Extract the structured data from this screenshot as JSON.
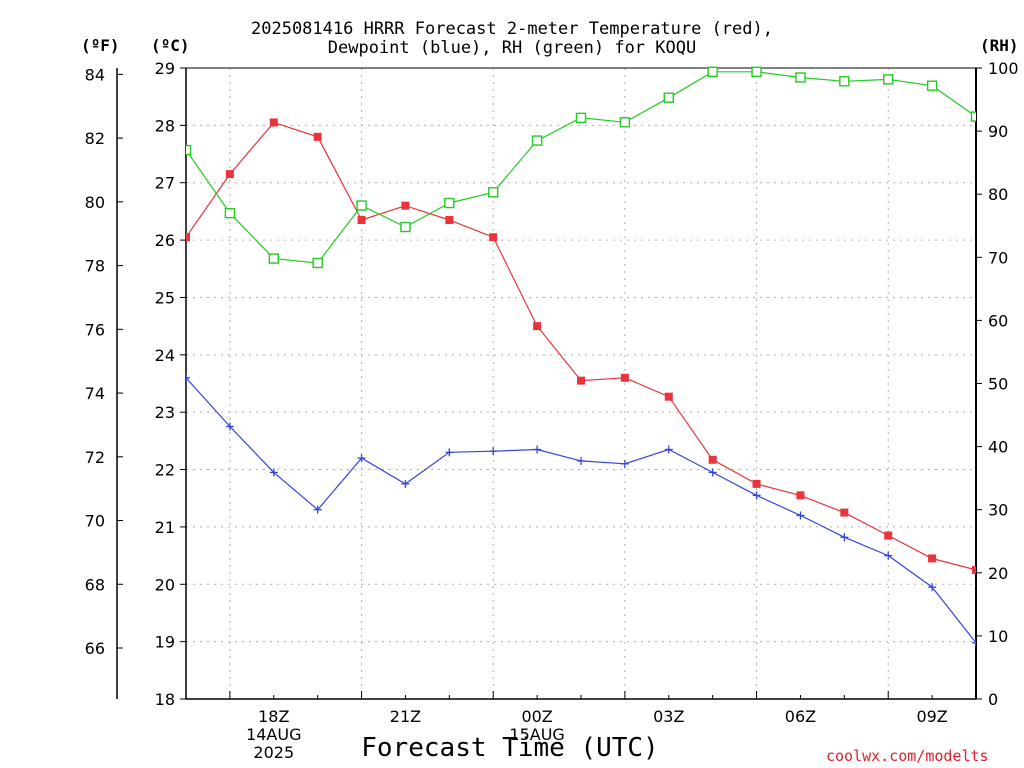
{
  "chart_data": {
    "type": "line",
    "title_lines": [
      "2025081416 HRRR Forecast 2-meter Temperature (red),",
      "Dewpoint (blue), RH (green) for KOQU"
    ],
    "units": {
      "fahrenheit": "(ºF)",
      "celsius": "(ºC)",
      "rh": "(RH)"
    },
    "xlabel": "Forecast Time (UTC)",
    "x_start": "2025-08-14 16Z",
    "x_step_hours": 1,
    "x_ticks": [
      {
        "label": "18Z",
        "sub": [
          "14AUG",
          "2025"
        ]
      },
      {
        "label": "21Z",
        "sub": []
      },
      {
        "label": "00Z",
        "sub": [
          "15AUG"
        ]
      },
      {
        "label": "03Z",
        "sub": []
      },
      {
        "label": "06Z",
        "sub": []
      },
      {
        "label": "09Z",
        "sub": []
      }
    ],
    "celsius_axis": {
      "range": [
        18,
        29
      ],
      "ticks": [
        "18",
        "19",
        "20",
        "21",
        "22",
        "23",
        "24",
        "25",
        "26",
        "27",
        "28",
        "29"
      ]
    },
    "fahrenheit_axis": {
      "range": [
        64.4,
        84.2
      ],
      "ticks": [
        "66",
        "68",
        "70",
        "72",
        "74",
        "76",
        "78",
        "80",
        "82",
        "84"
      ]
    },
    "rh_axis": {
      "range": [
        0,
        100
      ],
      "ticks": [
        "0",
        "10",
        "20",
        "30",
        "40",
        "50",
        "60",
        "70",
        "80",
        "90",
        "100"
      ]
    },
    "grid": true,
    "series": [
      {
        "name": "2-meter Temperature (red)",
        "axis": "celsius",
        "color": "#e8343a",
        "marker": "filled-square",
        "values": [
          26.05,
          27.15,
          28.05,
          27.8,
          26.35,
          26.6,
          26.35,
          26.05,
          24.5,
          23.55,
          23.6,
          23.27,
          22.17,
          21.75,
          21.55,
          21.25,
          20.85,
          20.45,
          20.25
        ]
      },
      {
        "name": "Dewpoint (blue)",
        "axis": "celsius",
        "color": "#3344dd",
        "marker": "plus",
        "values": [
          23.6,
          22.75,
          21.95,
          21.3,
          22.2,
          21.75,
          22.3,
          22.32,
          22.35,
          22.15,
          22.1,
          22.35,
          21.95,
          21.55,
          21.2,
          20.82,
          20.5,
          19.95,
          18.98
        ]
      },
      {
        "name": "RH (green)",
        "axis": "rh",
        "color": "#22cc22",
        "marker": "open-square",
        "values": [
          87,
          77,
          69.8,
          69.1,
          78.2,
          74.8,
          78.6,
          80.3,
          88.5,
          92.1,
          91.4,
          95.3,
          99.4,
          99.4,
          98.5,
          97.9,
          98.2,
          97.2,
          92.3
        ]
      }
    ]
  },
  "credit": "coolwx.com/modelts"
}
